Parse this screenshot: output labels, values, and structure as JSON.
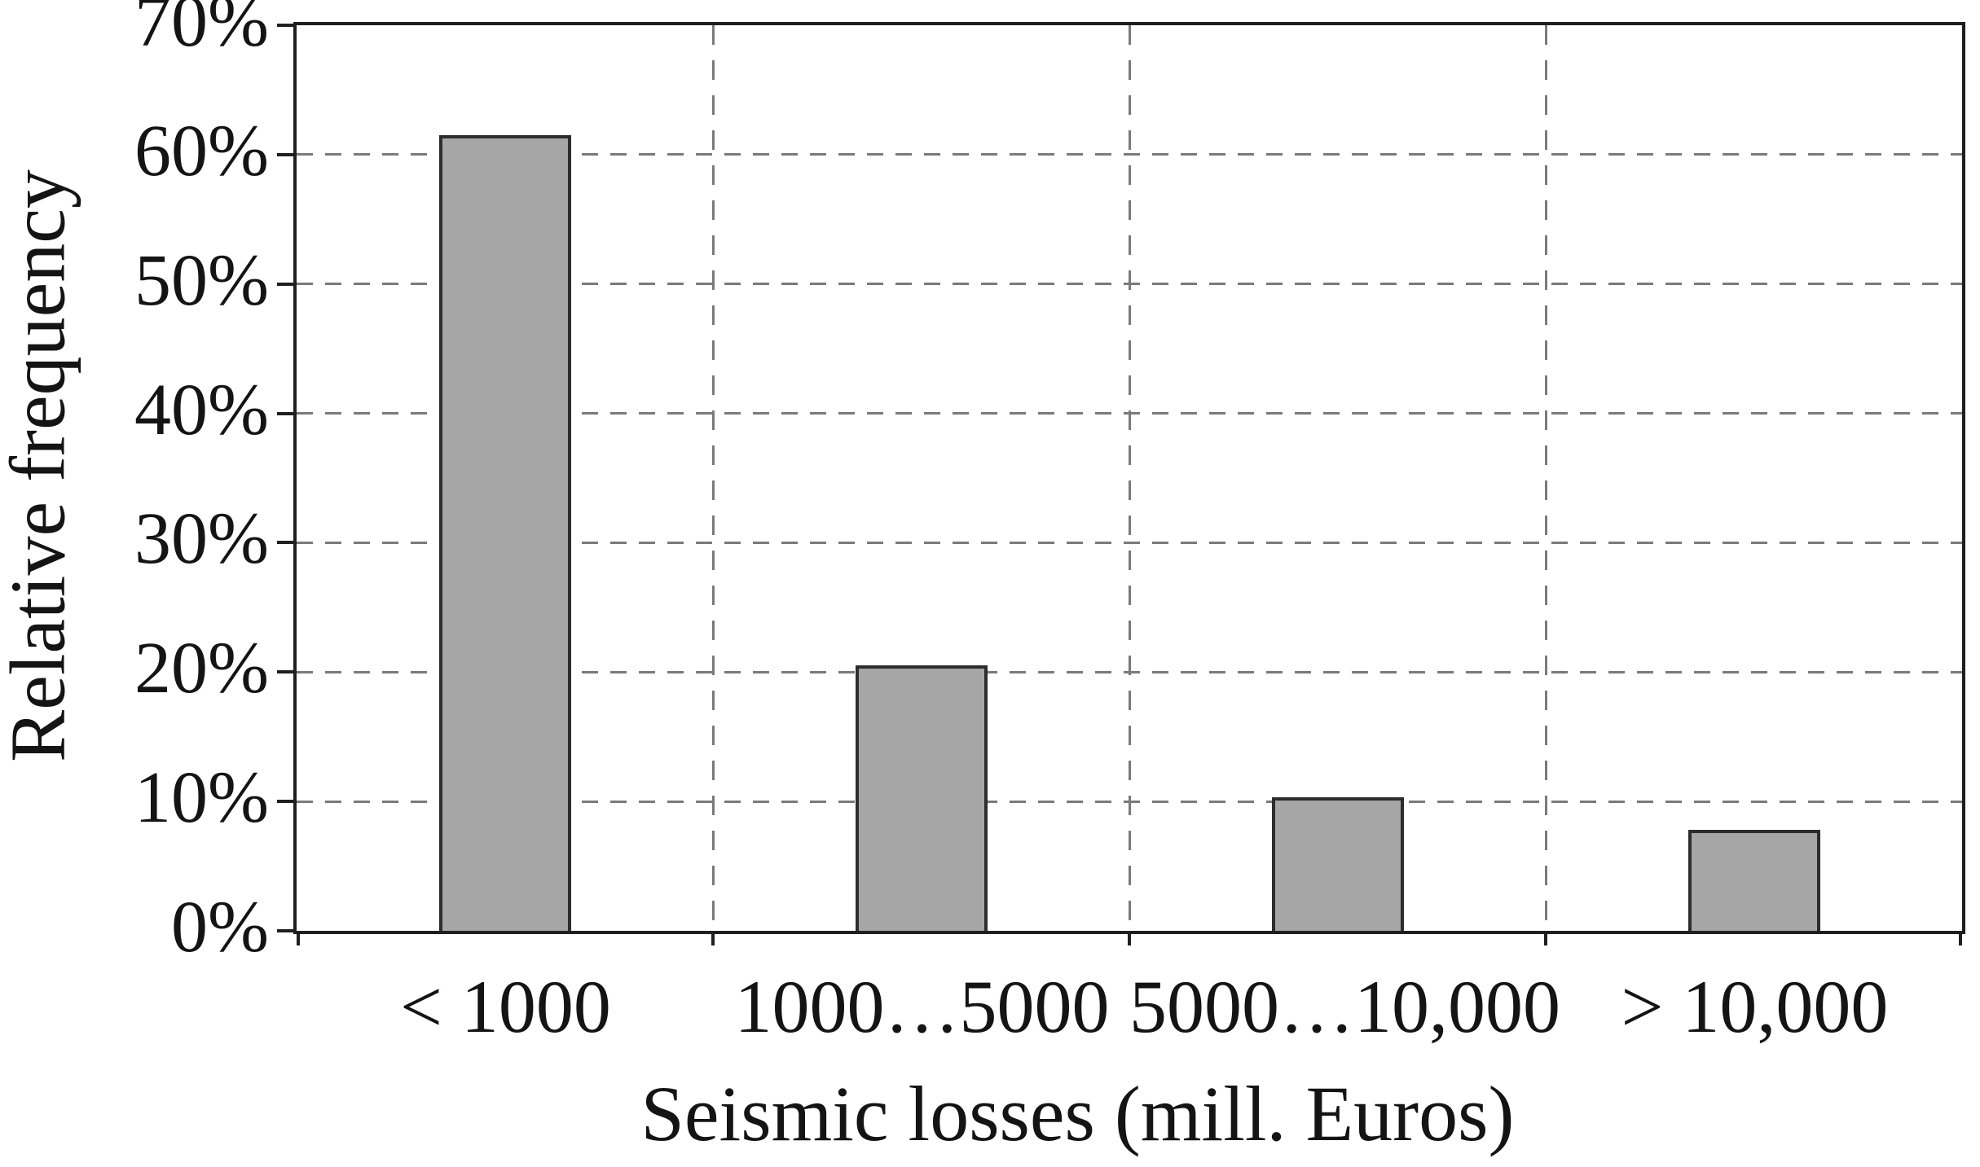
{
  "chart_data": {
    "type": "bar",
    "title": "",
    "categories": [
      "< 1000",
      "1000…5000",
      "5000…10,000",
      "> 10,000"
    ],
    "values": [
      61.5,
      20.5,
      10.3,
      7.8
    ],
    "xlabel": "Seismic losses (mill. Euros)",
    "ylabel": "Relative frequency",
    "ylim": [
      0,
      70
    ],
    "yticks": [
      0,
      10,
      20,
      30,
      40,
      50,
      60,
      70
    ],
    "ytick_labels": [
      "0%",
      "10%",
      "20%",
      "30%",
      "40%",
      "50%",
      "60%",
      "70%"
    ],
    "grid": "dashed-horizontal-and-vertical",
    "legend": "none",
    "colors": {
      "bar_fill": "#a6a6a6",
      "bar_border": "#2d2d2d",
      "grid_color": "#7a7a7a",
      "axis_color": "#1f1f1f",
      "text_color": "#141414",
      "background": "#ffffff"
    }
  }
}
